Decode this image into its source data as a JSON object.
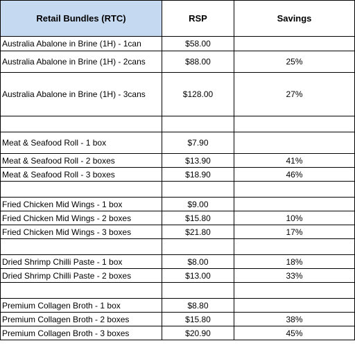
{
  "header": {
    "name": "Retail Bundles (RTC)",
    "rsp": "RSP",
    "savings": "Savings"
  },
  "header_bg_color": "#c5d9f1",
  "rows": [
    {
      "name": "Australia Abalone in Brine (1H) - 1can",
      "rsp": "$58.00",
      "savings": ""
    },
    {
      "name": "Australia Abalone in Brine (1H) - 2cans",
      "rsp": "$88.00",
      "savings": "25%"
    },
    {
      "name": "Australia Abalone in Brine (1H) - 3cans",
      "rsp": "$128.00",
      "savings": "27%"
    },
    {
      "name": "",
      "rsp": "",
      "savings": ""
    },
    {
      "name": "Meat & Seafood Roll - 1 box",
      "rsp": "$7.90",
      "savings": ""
    },
    {
      "name": "Meat & Seafood Roll - 2 boxes",
      "rsp": "$13.90",
      "savings": "41%"
    },
    {
      "name": "Meat & Seafood Roll - 3 boxes",
      "rsp": "$18.90",
      "savings": "46%"
    },
    {
      "name": "",
      "rsp": "",
      "savings": ""
    },
    {
      "name": "Fried Chicken Mid Wings - 1 box",
      "rsp": "$9.00",
      "savings": ""
    },
    {
      "name": "Fried Chicken Mid Wings - 2 boxes",
      "rsp": "$15.80",
      "savings": "10%"
    },
    {
      "name": "Fried Chicken Mid Wings - 3 boxes",
      "rsp": "$21.80",
      "savings": "17%"
    },
    {
      "name": "",
      "rsp": "",
      "savings": ""
    },
    {
      "name": "Dried Shrimp Chilli Paste - 1 box",
      "rsp": "$8.00",
      "savings": "18%"
    },
    {
      "name": "Dried Shrimp Chilli Paste - 2 boxes",
      "rsp": "$13.00",
      "savings": "33%"
    },
    {
      "name": "",
      "rsp": "",
      "savings": ""
    },
    {
      "name": "Premium Collagen Broth - 1 box",
      "rsp": "$8.80",
      "savings": ""
    },
    {
      "name": "Premium Collagen Broth - 2 boxes",
      "rsp": "$15.80",
      "savings": "38%"
    },
    {
      "name": "Premium Collagen Broth - 3 boxes",
      "rsp": "$20.90",
      "savings": "45%"
    }
  ]
}
